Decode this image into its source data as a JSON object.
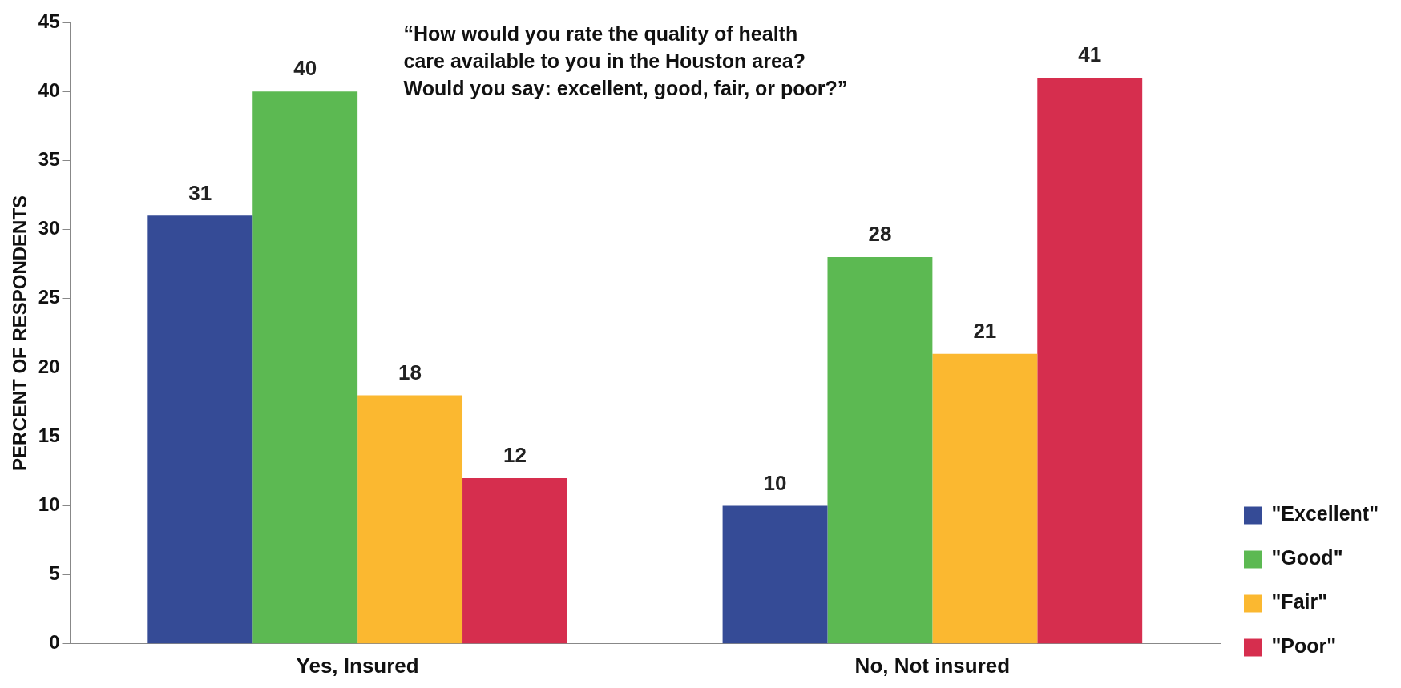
{
  "chart_data": {
    "type": "bar",
    "title": "“How would you rate the quality of health\ncare available to you in the Houston area?\nWould you say: excellent, good, fair, or poor?”",
    "ylabel": "PERCENT OF RESPONDENTS",
    "categories": [
      "Yes, Insured",
      "No, Not insured"
    ],
    "series": [
      {
        "name": "\"Excellent\"",
        "color": "#354b96",
        "values": [
          31,
          10
        ]
      },
      {
        "name": "\"Good\"",
        "color": "#5cb952",
        "values": [
          40,
          28
        ]
      },
      {
        "name": "\"Fair\"",
        "color": "#fbb830",
        "values": [
          18,
          21
        ]
      },
      {
        "name": "\"Poor\"",
        "color": "#d62e4e",
        "values": [
          12,
          41
        ]
      }
    ],
    "ylim": [
      0,
      45
    ],
    "yticks": [
      0,
      5,
      10,
      15,
      20,
      25,
      30,
      35,
      40,
      45
    ],
    "grid": false,
    "legend": "right",
    "data_labels": true
  }
}
